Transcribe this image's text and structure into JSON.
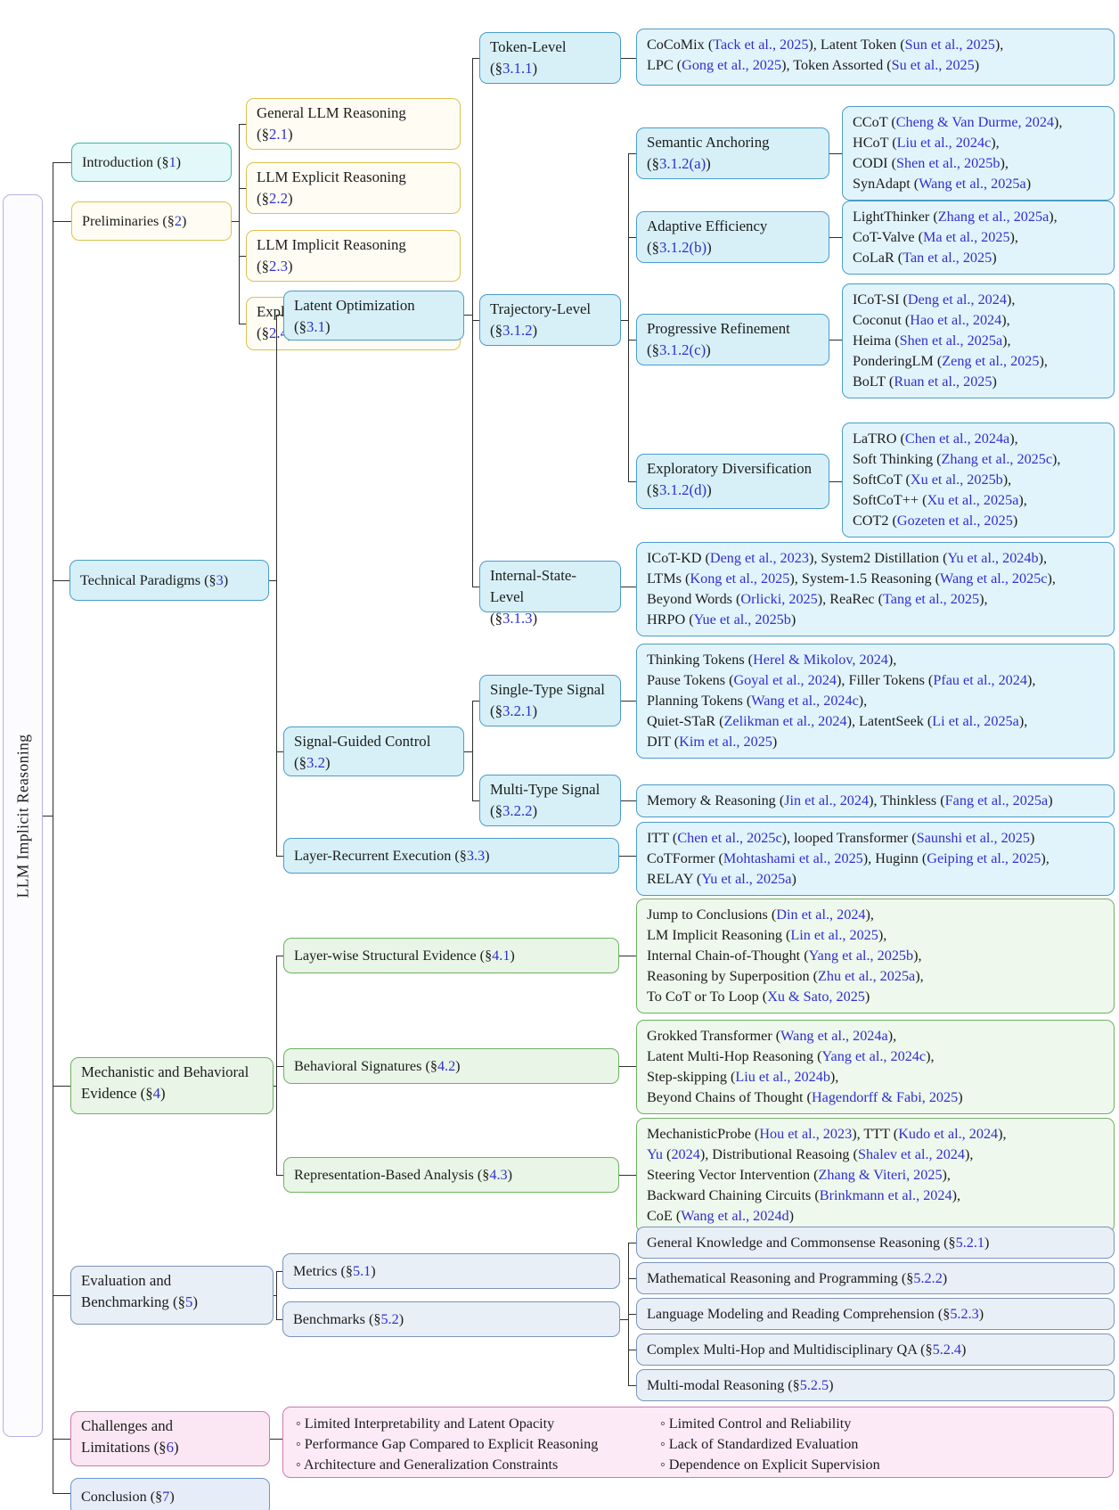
{
  "figure": {
    "root_label": "LLM Implicit Reasoning"
  },
  "colors": {
    "citation_link": "#2f2fd0",
    "teal_accent": "#3eb8b0",
    "gold_accent": "#ddc04f",
    "blue_accent": "#4a9cc9",
    "green_accent": "#6db262",
    "slate_accent": "#7a94b8",
    "pink_accent": "#d078b0",
    "lavender_accent": "#6b95cf"
  },
  "nodes": {
    "intro": {
      "segs": [
        "Introduction (§",
        "1",
        ")"
      ]
    },
    "prelim": {
      "segs": [
        "Preliminaries (§",
        "2",
        ")"
      ]
    },
    "s2_1": {
      "segs": [
        "General LLM Reasoning\n(§",
        "2.1",
        ")"
      ]
    },
    "s2_2": {
      "segs": [
        "LLM Explicit Reasoning\n(§",
        "2.2",
        ")"
      ]
    },
    "s2_3": {
      "segs": [
        "LLM Implicit Reasoning\n(§",
        "2.3",
        ")"
      ]
    },
    "s2_4": {
      "segs": [
        "Explicit vs Implicit Reasoning\n(§",
        "2.4",
        ")"
      ]
    },
    "s3": {
      "segs": [
        "Technical Paradigms (§",
        "3",
        ")"
      ]
    },
    "s3_1": {
      "segs": [
        "Latent Optimization\n(§",
        "3.1",
        ")"
      ]
    },
    "s3_1_1": {
      "segs": [
        "Token-Level\n(§",
        "3.1.1",
        ")"
      ]
    },
    "s3_1_2": {
      "segs": [
        "Trajectory-Level\n(§",
        "3.1.2",
        ")"
      ]
    },
    "s3_1_3": {
      "segs": [
        "Internal-State-Level\n(§",
        "3.1.3",
        ")"
      ]
    },
    "s3_1_2a": {
      "segs": [
        "Semantic Anchoring\n(§",
        "3.1.2(a)",
        ")"
      ]
    },
    "s3_1_2b": {
      "segs": [
        "Adaptive Efficiency\n(§",
        "3.1.2(b)",
        ")"
      ]
    },
    "s3_1_2c": {
      "segs": [
        "Progressive Refinement\n(§",
        "3.1.2(c)",
        ")"
      ]
    },
    "s3_1_2d": {
      "segs": [
        "Exploratory Diversification\n(§",
        "3.1.2(d)",
        ")"
      ]
    },
    "s3_2": {
      "segs": [
        "Signal-Guided Control\n(§",
        "3.2",
        ")"
      ]
    },
    "s3_2_1": {
      "segs": [
        "Single-Type Signal\n(§",
        "3.2.1",
        ")"
      ]
    },
    "s3_2_2": {
      "segs": [
        "Multi-Type Signal\n(§",
        "3.2.2",
        ")"
      ]
    },
    "s3_3": {
      "segs": [
        "Layer-Recurrent Execution (§",
        "3.3",
        ")"
      ]
    },
    "s4": {
      "segs": [
        "Mechanistic and Behavioral\nEvidence (§",
        "4",
        ")"
      ]
    },
    "s4_1": {
      "segs": [
        "Layer-wise Structural Evidence (§",
        "4.1",
        ")"
      ]
    },
    "s4_2": {
      "segs": [
        "Behavioral Signatures (§",
        "4.2",
        ")"
      ]
    },
    "s4_3": {
      "segs": [
        "Representation-Based Analysis (§",
        "4.3",
        ")"
      ]
    },
    "s5": {
      "segs": [
        "Evaluation and\nBenchmarking (§",
        "5",
        ")"
      ]
    },
    "s5_1": {
      "segs": [
        "Metrics (§",
        "5.1",
        ")"
      ]
    },
    "s5_2": {
      "segs": [
        "Benchmarks (§",
        "5.2",
        ")"
      ]
    },
    "s5_2_1": {
      "segs": [
        "General Knowledge and Commonsense Reasoning (§",
        "5.2.1",
        ")"
      ]
    },
    "s5_2_2": {
      "segs": [
        "Mathematical Reasoning and Programming (§",
        "5.2.2",
        ")"
      ]
    },
    "s5_2_3": {
      "segs": [
        "Language Modeling and Reading Comprehension (§",
        "5.2.3",
        ")"
      ]
    },
    "s5_2_4": {
      "segs": [
        "Complex Multi-Hop and Multidisciplinary QA (§",
        "5.2.4",
        ")"
      ]
    },
    "s5_2_5": {
      "segs": [
        "Multi-modal Reasoning (§",
        "5.2.5",
        ")"
      ]
    },
    "s6": {
      "segs": [
        "Challenges and\nLimitations (§",
        "6",
        ")"
      ]
    },
    "s7": {
      "segs": [
        "Conclusion (§",
        "7",
        ")"
      ]
    },
    "token_content": {
      "segs": [
        "CoCoMix (",
        "Tack et al., 2025",
        "), Latent Token (",
        "Sun et al., 2025",
        "),\nLPC (",
        "Gong et al., 2025",
        "), Token Assorted (",
        "Su et al., 2025",
        ")"
      ]
    },
    "semantic_content": {
      "segs": [
        "CCoT (",
        "Cheng & Van Durme, 2024",
        "),\nHCoT (",
        "Liu et al., 2024c",
        "),\nCODI (",
        "Shen et al., 2025b",
        "),\nSynAdapt (",
        "Wang et al., 2025a",
        ")"
      ]
    },
    "adaptive_content": {
      "segs": [
        "LightThinker (",
        "Zhang et al., 2025a",
        "),\nCoT-Valve (",
        "Ma et al., 2025",
        "),\nCoLaR (",
        "Tan et al., 2025",
        ")"
      ]
    },
    "progressive_content": {
      "segs": [
        "ICoT-SI (",
        "Deng et al., 2024",
        "),\nCoconut (",
        "Hao et al., 2024",
        "),\nHeima (",
        "Shen et al., 2025a",
        "),\nPonderingLM (",
        "Zeng et al., 2025",
        "),\nBoLT (",
        "Ruan et al., 2025",
        ")"
      ]
    },
    "exploratory_content": {
      "segs": [
        "LaTRO (",
        "Chen et al., 2024a",
        "),\nSoft Thinking (",
        "Zhang et al., 2025c",
        "),\nSoftCoT (",
        "Xu et al., 2025b",
        "),\nSoftCoT++ (",
        "Xu et al., 2025a",
        "),\nCOT2 (",
        "Gozeten et al., 2025",
        ")"
      ]
    },
    "internal_content": {
      "segs": [
        "ICoT-KD (",
        "Deng et al., 2023",
        "), System2 Distillation (",
        "Yu et al., 2024b",
        "),\nLTMs (",
        "Kong et al., 2025",
        "), System-1.5 Reasoning (",
        "Wang et al., 2025c",
        "),\nBeyond Words (",
        "Orlicki, 2025",
        "), ReaRec (",
        "Tang et al., 2025",
        "),\nHRPO (",
        "Yue et al., 2025b",
        ")"
      ]
    },
    "single_content": {
      "segs": [
        "Thinking Tokens (",
        "Herel & Mikolov, 2024",
        "),\nPause Tokens (",
        "Goyal et al., 2024",
        "), Filler Tokens (",
        "Pfau et al., 2024",
        "),\nPlanning Tokens (",
        "Wang et al., 2024c",
        "),\nQuiet-STaR (",
        "Zelikman et al., 2024",
        "), LatentSeek (",
        "Li et al., 2025a",
        "),\nDIT (",
        "Kim et al., 2025",
        ")"
      ]
    },
    "multi_content": {
      "segs": [
        "Memory & Reasoning (",
        "Jin et al., 2024",
        "), Thinkless (",
        "Fang et al., 2025a",
        ")"
      ]
    },
    "layerrec_content": {
      "segs": [
        "ITT (",
        "Chen et al., 2025c",
        "), looped Transformer (",
        "Saunshi et al., 2025",
        ")\nCoTFormer (",
        "Mohtashami et al., 2025",
        "), Huginn (",
        "Geiping et al., 2025",
        "),\nRELAY (",
        "Yu et al., 2025a",
        ")"
      ]
    },
    "s41_content": {
      "segs": [
        "Jump to Conclusions (",
        "Din et al., 2024",
        "),\nLM Implicit Reasoning (",
        "Lin et al., 2025",
        "),\nInternal Chain-of-Thought (",
        "Yang et al., 2025b",
        "),\nReasoning by Superposition (",
        "Zhu et al., 2025a",
        "),\nTo CoT or To Loop (",
        "Xu & Sato, 2025",
        ")"
      ]
    },
    "s42_content": {
      "segs": [
        "Grokked Transformer (",
        "Wang et al., 2024a",
        "),\nLatent Multi-Hop Reasoning (",
        "Yang et al., 2024c",
        "),\nStep-skipping (",
        "Liu et al., 2024b",
        "),\nBeyond Chains of Thought (",
        "Hagendorff & Fabi, 2025",
        ")"
      ]
    },
    "s43_content": {
      "segs": [
        "MechanisticProbe (",
        "Hou et al., 2023",
        "), TTT (",
        "Kudo et al., 2024",
        "),\n",
        "Yu",
        " (",
        "2024",
        "), Distributional Reasoing (",
        "Shalev et al., 2024",
        "),\nSteering Vector Intervention (",
        "Zhang & Viteri, 2025",
        "),\nBackward Chaining Circuits (",
        "Brinkmann et al., 2024",
        "),\nCoE (",
        "Wang et al., 2024d",
        ")"
      ]
    },
    "challenges_left": {
      "segs": [
        "◦ Limited Interpretability and Latent Opacity\n◦ Performance Gap Compared to Explicit Reasoning\n◦ Architecture and Generalization Constraints"
      ]
    },
    "challenges_right": {
      "segs": [
        "◦ Limited Control and Reliability\n◦ Lack of Standardized Evaluation\n◦ Dependence on Explicit Supervision"
      ]
    }
  }
}
